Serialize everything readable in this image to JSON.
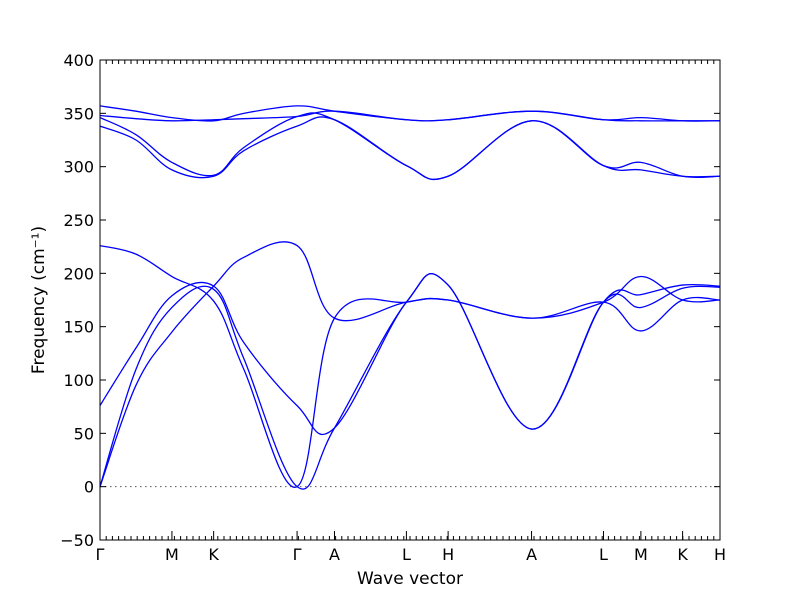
{
  "chart_data": {
    "type": "line",
    "xlabel": "Wave vector",
    "ylabel": "Frequency (cm⁻¹)",
    "ylim": [
      -50,
      400
    ],
    "yticks": [
      -50,
      0,
      50,
      100,
      150,
      200,
      250,
      300,
      350,
      400
    ],
    "grid": false,
    "zero_line": {
      "y": 0,
      "style": "dotted"
    },
    "kpoints": [
      {
        "label": "Γ",
        "x": 0
      },
      {
        "label": "M",
        "x": 0.5
      },
      {
        "label": "K",
        "x": 0.79
      },
      {
        "label": "Γ",
        "x": 1.37
      },
      {
        "label": "A",
        "x": 1.63
      },
      {
        "label": "L",
        "x": 2.13
      },
      {
        "label": "H",
        "x": 2.42
      },
      {
        "label": "A",
        "x": 3.0
      },
      {
        "label": "L",
        "x": 3.5
      },
      {
        "label": "M",
        "x": 3.76
      },
      {
        "label": "K",
        "x": 4.05
      },
      {
        "label": "H",
        "x": 4.31
      }
    ],
    "series": [
      {
        "values": [
          [
            0,
            0
          ],
          [
            0.25,
            95
          ],
          [
            0.5,
            145
          ],
          [
            0.79,
            188
          ],
          [
            1.0,
            215
          ],
          [
            1.37,
            226
          ],
          [
            1.63,
            158
          ],
          [
            2.13,
            173
          ],
          [
            2.42,
            175
          ],
          [
            3.0,
            158
          ],
          [
            3.5,
            173
          ],
          [
            3.76,
            146
          ],
          [
            4.05,
            175
          ],
          [
            4.31,
            175
          ]
        ]
      },
      {
        "values": [
          [
            0,
            0
          ],
          [
            0.25,
            110
          ],
          [
            0.5,
            168
          ],
          [
            0.79,
            185
          ],
          [
            1.0,
            120
          ],
          [
            1.37,
            0
          ],
          [
            1.63,
            55
          ],
          [
            2.13,
            173
          ],
          [
            2.42,
            189
          ],
          [
            3.0,
            54
          ],
          [
            3.5,
            173
          ],
          [
            3.76,
            168
          ],
          [
            4.05,
            186
          ],
          [
            4.31,
            187
          ]
        ]
      },
      {
        "values": [
          [
            0,
            76
          ],
          [
            0.25,
            130
          ],
          [
            0.5,
            179
          ],
          [
            0.79,
            188
          ],
          [
            1.0,
            135
          ],
          [
            1.37,
            76
          ],
          [
            1.63,
            55
          ],
          [
            2.13,
            173
          ],
          [
            2.42,
            189
          ],
          [
            3.0,
            54
          ],
          [
            3.5,
            173
          ],
          [
            3.76,
            180
          ],
          [
            4.05,
            189
          ],
          [
            4.31,
            188
          ]
        ]
      },
      {
        "values": [
          [
            0,
            226
          ],
          [
            0.25,
            218
          ],
          [
            0.5,
            197
          ],
          [
            0.79,
            174
          ],
          [
            1.0,
            110
          ],
          [
            1.37,
            0
          ],
          [
            1.63,
            158
          ],
          [
            2.13,
            173
          ],
          [
            2.42,
            175
          ],
          [
            3.0,
            158
          ],
          [
            3.5,
            173
          ],
          [
            3.76,
            197
          ],
          [
            4.05,
            175
          ],
          [
            4.31,
            175
          ]
        ]
      },
      {
        "values": [
          [
            0,
            338
          ],
          [
            0.25,
            325
          ],
          [
            0.5,
            297
          ],
          [
            0.79,
            291
          ],
          [
            1.0,
            315
          ],
          [
            1.37,
            338
          ],
          [
            1.63,
            344
          ],
          [
            2.13,
            301
          ],
          [
            2.42,
            291
          ],
          [
            3.0,
            343
          ],
          [
            3.5,
            301
          ],
          [
            3.76,
            297
          ],
          [
            4.05,
            291
          ],
          [
            4.31,
            291
          ]
        ]
      },
      {
        "values": [
          [
            0,
            346
          ],
          [
            0.25,
            330
          ],
          [
            0.5,
            304
          ],
          [
            0.79,
            292
          ],
          [
            1.0,
            318
          ],
          [
            1.37,
            347
          ],
          [
            1.63,
            344
          ],
          [
            2.13,
            301
          ],
          [
            2.42,
            291
          ],
          [
            3.0,
            343
          ],
          [
            3.5,
            301
          ],
          [
            3.76,
            304
          ],
          [
            4.05,
            291
          ],
          [
            4.31,
            291
          ]
        ]
      },
      {
        "values": [
          [
            0,
            348
          ],
          [
            0.25,
            345
          ],
          [
            0.5,
            343
          ],
          [
            0.79,
            344
          ],
          [
            1.0,
            345
          ],
          [
            1.37,
            347
          ],
          [
            1.63,
            352
          ],
          [
            2.13,
            344
          ],
          [
            2.42,
            344
          ],
          [
            3.0,
            352
          ],
          [
            3.5,
            344
          ],
          [
            3.76,
            343
          ],
          [
            4.05,
            343
          ],
          [
            4.31,
            343
          ]
        ]
      },
      {
        "values": [
          [
            0,
            357
          ],
          [
            0.25,
            352
          ],
          [
            0.5,
            346
          ],
          [
            0.79,
            343
          ],
          [
            1.0,
            350
          ],
          [
            1.37,
            357
          ],
          [
            1.63,
            352
          ],
          [
            2.13,
            344
          ],
          [
            2.42,
            344
          ],
          [
            3.0,
            352
          ],
          [
            3.5,
            344
          ],
          [
            3.76,
            346
          ],
          [
            4.05,
            343
          ],
          [
            4.31,
            343
          ]
        ]
      }
    ]
  }
}
